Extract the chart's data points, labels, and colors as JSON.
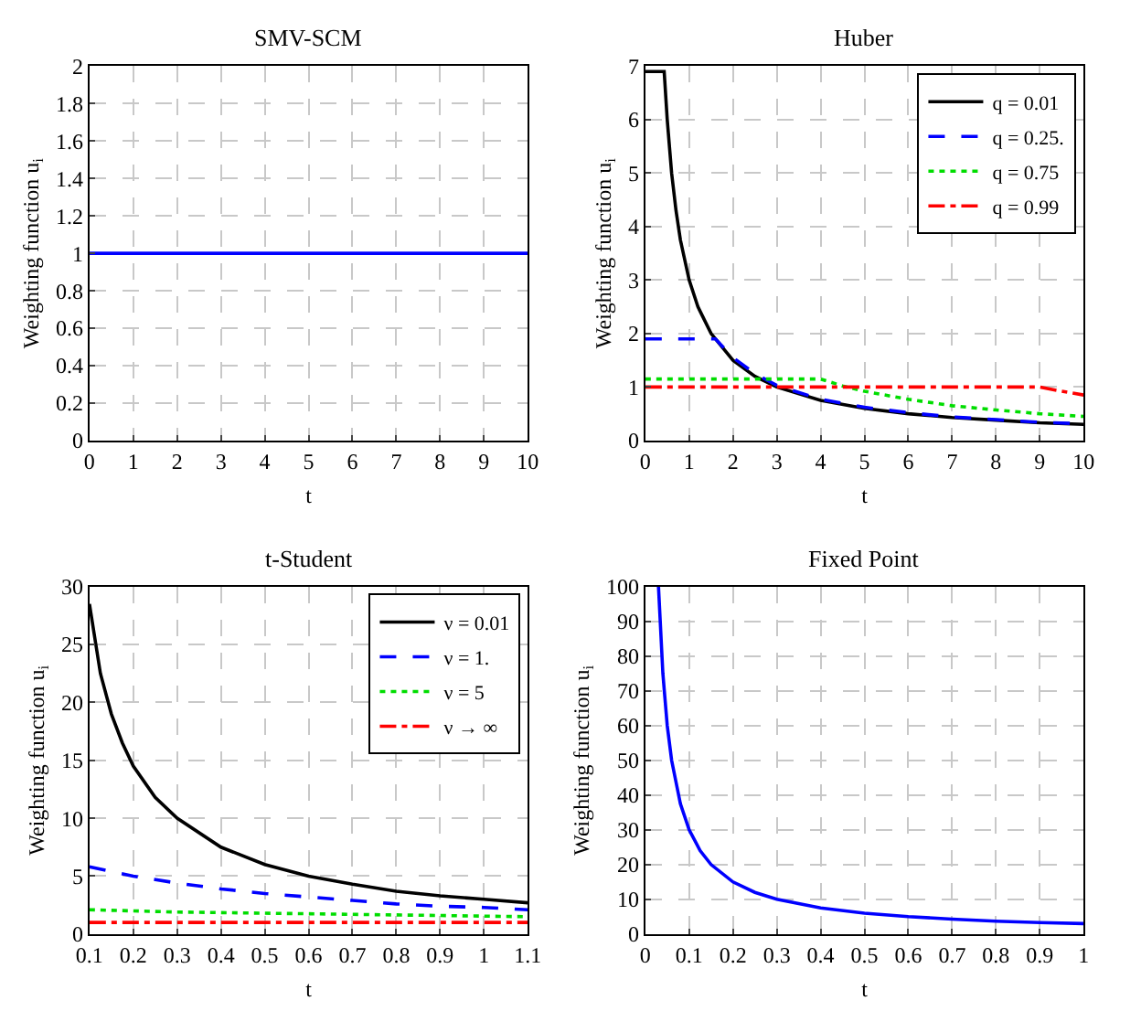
{
  "chart_data": [
    {
      "type": "line",
      "title": "SMV-SCM",
      "xlabel": "t",
      "ylabel": "Weighting function u$_{i}$",
      "xlim": [
        0,
        10
      ],
      "ylim": [
        0,
        2
      ],
      "xticks": [
        0,
        1,
        2,
        3,
        4,
        5,
        6,
        7,
        8,
        9,
        10
      ],
      "yticks": [
        0,
        0.2,
        0.4,
        0.6,
        0.8,
        1,
        1.2,
        1.4,
        1.6,
        1.8,
        2
      ],
      "grid": true,
      "legend": false,
      "series": [
        {
          "color": "#0000ff",
          "line_style": "solid",
          "x": [
            0,
            10
          ],
          "values": [
            1,
            1
          ]
        }
      ]
    },
    {
      "type": "line",
      "title": "Huber",
      "xlabel": "t",
      "ylabel": "Weighting function u$_{i}$",
      "xlim": [
        0,
        10
      ],
      "ylim": [
        0,
        7
      ],
      "xticks": [
        0,
        1,
        2,
        3,
        4,
        5,
        6,
        7,
        8,
        9,
        10
      ],
      "yticks": [
        0,
        1,
        2,
        3,
        4,
        5,
        6,
        7
      ],
      "grid": true,
      "legend": "top right",
      "series": [
        {
          "name": "q = 0.01",
          "color": "#000000",
          "line_style": "solid",
          "x": [
            0,
            0.43,
            0.5,
            0.6,
            0.7,
            0.8,
            1,
            1.2,
            1.5,
            2,
            2.5,
            3,
            4,
            5,
            6,
            7,
            8,
            9,
            10
          ],
          "values": [
            6.9,
            6.9,
            6.0,
            5.0,
            4.3,
            3.75,
            3.0,
            2.5,
            2.0,
            1.5,
            1.2,
            1.0,
            0.75,
            0.6,
            0.5,
            0.43,
            0.38,
            0.33,
            0.3
          ]
        },
        {
          "name": "q = 0.25.",
          "color": "#0000ff",
          "line_style": "dashed",
          "x": [
            0,
            1.6,
            2,
            2.5,
            3,
            4,
            5,
            6,
            7,
            8,
            9,
            10
          ],
          "values": [
            1.9,
            1.9,
            1.55,
            1.25,
            1.03,
            0.77,
            0.62,
            0.52,
            0.44,
            0.39,
            0.34,
            0.31
          ]
        },
        {
          "name": "q = 0.75",
          "color": "#00dd00",
          "line_style": "dotted",
          "x": [
            0,
            4,
            4.5,
            5,
            6,
            7,
            8,
            9,
            10
          ],
          "values": [
            1.15,
            1.15,
            1.02,
            0.92,
            0.77,
            0.65,
            0.57,
            0.5,
            0.45
          ]
        },
        {
          "name": "q = 0.99",
          "color": "#ff0000",
          "line_style": "dashdot",
          "x": [
            0,
            9,
            9.5,
            10
          ],
          "values": [
            1.0,
            1.0,
            0.92,
            0.85
          ]
        }
      ]
    },
    {
      "type": "line",
      "title": "t-Student",
      "xlabel": "t",
      "ylabel": "Weighting function u$_{i}$",
      "xlim": [
        0.1,
        1.1
      ],
      "ylim": [
        0,
        30
      ],
      "xticks": [
        0.1,
        0.2,
        0.3,
        0.4,
        0.5,
        0.6,
        0.7,
        0.8,
        0.9,
        1,
        1.1
      ],
      "yticks": [
        0,
        5,
        10,
        15,
        20,
        25,
        30
      ],
      "grid": true,
      "legend": "top right",
      "series": [
        {
          "name": "ν = 0.01",
          "color": "#000000",
          "line_style": "solid",
          "x": [
            0.1,
            0.125,
            0.15,
            0.175,
            0.2,
            0.25,
            0.3,
            0.4,
            0.5,
            0.6,
            0.7,
            0.8,
            0.9,
            1.0,
            1.1
          ],
          "values": [
            28.5,
            22.5,
            19,
            16.5,
            14.5,
            11.8,
            10,
            7.5,
            6,
            5,
            4.3,
            3.7,
            3.3,
            3.0,
            2.7
          ]
        },
        {
          "name": "ν = 1.",
          "color": "#0000ff",
          "line_style": "dashed",
          "x": [
            0.1,
            0.2,
            0.3,
            0.4,
            0.5,
            0.6,
            0.7,
            0.8,
            0.9,
            1.0,
            1.1
          ],
          "values": [
            5.8,
            5.0,
            4.4,
            3.9,
            3.5,
            3.2,
            2.9,
            2.6,
            2.4,
            2.3,
            2.1
          ]
        },
        {
          "name": "ν = 5",
          "color": "#00dd00",
          "line_style": "dotted",
          "x": [
            0.1,
            0.3,
            0.5,
            0.7,
            0.9,
            1.1
          ],
          "values": [
            2.1,
            1.9,
            1.8,
            1.7,
            1.6,
            1.5
          ]
        },
        {
          "name": "ν → ∞",
          "color": "#ff0000",
          "line_style": "dashdot",
          "x": [
            0.1,
            1.1
          ],
          "values": [
            1,
            1
          ]
        }
      ]
    },
    {
      "type": "line",
      "title": "Fixed Point",
      "xlabel": "t",
      "ylabel": "Weighting function u$_{i}$",
      "xlim": [
        0,
        1
      ],
      "ylim": [
        0,
        100
      ],
      "xticks": [
        0,
        0.1,
        0.2,
        0.3,
        0.4,
        0.5,
        0.6,
        0.7,
        0.8,
        0.9,
        1
      ],
      "yticks": [
        0,
        10,
        20,
        30,
        40,
        50,
        60,
        70,
        80,
        90,
        100
      ],
      "grid": true,
      "legend": false,
      "series": [
        {
          "color": "#0000ff",
          "line_style": "solid",
          "x": [
            0.03,
            0.04,
            0.05,
            0.06,
            0.08,
            0.1,
            0.125,
            0.15,
            0.2,
            0.25,
            0.3,
            0.4,
            0.5,
            0.6,
            0.7,
            0.8,
            0.9,
            1.0
          ],
          "values": [
            100,
            75,
            60,
            50,
            37.5,
            30,
            24,
            20,
            15,
            12,
            10,
            7.5,
            6,
            5,
            4.3,
            3.7,
            3.3,
            3.0
          ]
        }
      ]
    }
  ]
}
